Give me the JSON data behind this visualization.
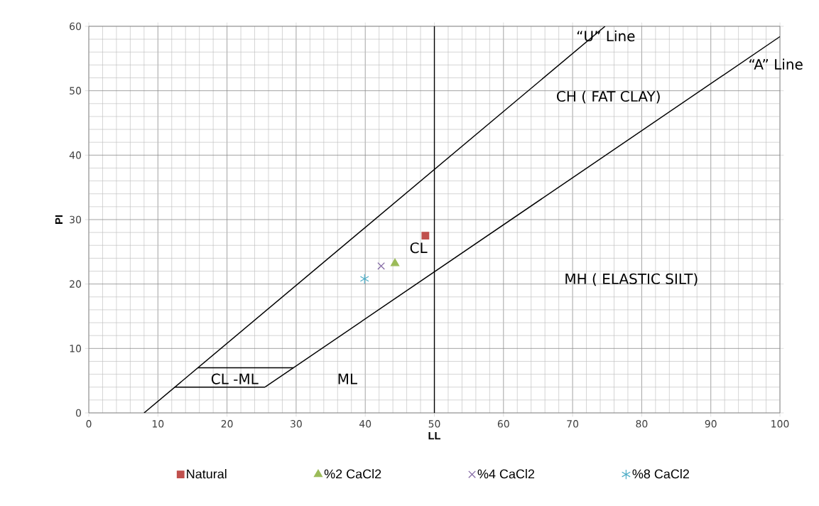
{
  "chart_data": {
    "type": "scatter",
    "xlabel": "LL",
    "ylabel": "PI",
    "xlim": [
      0,
      100
    ],
    "ylim": [
      0,
      60
    ],
    "xticks": [
      0,
      10,
      20,
      30,
      40,
      50,
      60,
      70,
      80,
      90,
      100
    ],
    "yticks": [
      0,
      10,
      20,
      30,
      40,
      50,
      60
    ],
    "grid": true,
    "legend": "bottom",
    "series": [
      {
        "type": "line",
        "color": "#000000",
        "marker": "none",
        "x": [
          8,
          74.7
        ],
        "values": [
          0,
          60
        ]
      },
      {
        "type": "line",
        "color": "#000000",
        "marker": "none",
        "x": [
          25.5,
          100
        ],
        "values": [
          4,
          58.4
        ]
      },
      {
        "type": "line",
        "color": "#000000",
        "marker": "none",
        "x": [
          50,
          50
        ],
        "values": [
          0,
          60
        ]
      },
      {
        "type": "line",
        "color": "#000000",
        "marker": "none",
        "x": [
          12.4,
          25.5
        ],
        "values": [
          4,
          4
        ]
      },
      {
        "type": "line",
        "color": "#000000",
        "marker": "none",
        "x": [
          15.8,
          29.6
        ],
        "values": [
          7,
          7
        ]
      },
      {
        "name": "Natural",
        "color": "#c0504d",
        "marker": "square",
        "x": [
          48.7
        ],
        "values": [
          27.5
        ]
      },
      {
        "name": "%2 CaCl2",
        "color": "#9bbb59",
        "marker": "triangle",
        "x": [
          44.3
        ],
        "values": [
          23.2
        ]
      },
      {
        "name": "%4 CaCl2",
        "color": "#8064a2",
        "marker": "cross",
        "x": [
          42.3
        ],
        "values": [
          22.8
        ]
      },
      {
        "name": "%8 CaCl2",
        "color": "#4bacc6",
        "x": [
          39.9
        ],
        "values": [
          20.8
        ]
      }
    ],
    "annotations": [
      "“U” Line",
      "“A” Line",
      "CH ( FAT CLAY)",
      "CL",
      "MH ( ELASTIC SILT)",
      "CL -ML",
      "ML"
    ]
  }
}
